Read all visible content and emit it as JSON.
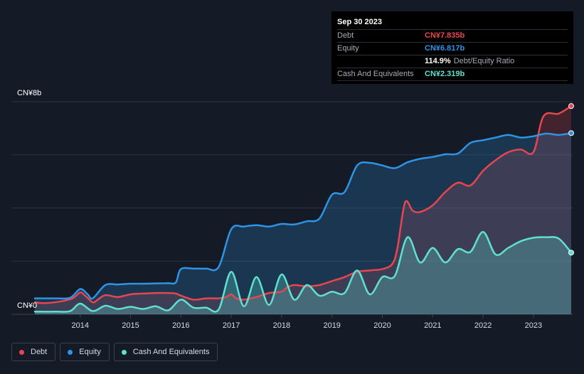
{
  "tooltip": {
    "date": "Sep 30 2023",
    "rows": [
      {
        "label": "Debt",
        "value": "CN¥7.835b",
        "color": "#e8464f"
      },
      {
        "label": "Equity",
        "value": "CN¥6.817b",
        "color": "#2e94e6"
      },
      {
        "label": "",
        "value": "114.9%",
        "suffix": "Debt/Equity Ratio",
        "color": "#ffffff"
      },
      {
        "label": "Cash And Equivalents",
        "value": "CN¥2.319b",
        "color": "#5fe0d0"
      }
    ]
  },
  "legend": [
    {
      "label": "Debt",
      "color": "#e8464f"
    },
    {
      "label": "Equity",
      "color": "#2e94e6"
    },
    {
      "label": "Cash And Equivalents",
      "color": "#5fe0d0"
    }
  ],
  "chart_data": {
    "type": "area",
    "ylim": [
      0,
      8
    ],
    "y_tick_labels": [
      "CN¥0",
      "CN¥8b"
    ],
    "x_tick_labels": [
      "2014",
      "2015",
      "2016",
      "2017",
      "2018",
      "2019",
      "2020",
      "2021",
      "2022",
      "2023"
    ],
    "x_ticks": [
      2014,
      2015,
      2016,
      2017,
      2018,
      2019,
      2020,
      2021,
      2022,
      2023
    ],
    "xlim": [
      2013.1,
      2023.75
    ],
    "grid": true,
    "series": [
      {
        "name": "Debt",
        "color": "#e8464f",
        "points": [
          [
            2013.1,
            0.45
          ],
          [
            2013.3,
            0.42
          ],
          [
            2013.6,
            0.48
          ],
          [
            2013.85,
            0.6
          ],
          [
            2014.0,
            0.82
          ],
          [
            2014.1,
            0.7
          ],
          [
            2014.25,
            0.45
          ],
          [
            2014.35,
            0.55
          ],
          [
            2014.5,
            0.72
          ],
          [
            2014.75,
            0.65
          ],
          [
            2015.0,
            0.75
          ],
          [
            2015.25,
            0.78
          ],
          [
            2015.5,
            0.8
          ],
          [
            2015.75,
            0.8
          ],
          [
            2015.9,
            0.78
          ],
          [
            2016.0,
            0.7
          ],
          [
            2016.25,
            0.55
          ],
          [
            2016.5,
            0.6
          ],
          [
            2016.75,
            0.6
          ],
          [
            2016.9,
            0.65
          ],
          [
            2017.0,
            0.75
          ],
          [
            2017.1,
            0.6
          ],
          [
            2017.25,
            0.55
          ],
          [
            2017.5,
            0.65
          ],
          [
            2017.75,
            0.8
          ],
          [
            2018.0,
            0.85
          ],
          [
            2018.1,
            1.0
          ],
          [
            2018.25,
            1.1
          ],
          [
            2018.5,
            1.05
          ],
          [
            2018.75,
            1.1
          ],
          [
            2019.0,
            1.25
          ],
          [
            2019.25,
            1.4
          ],
          [
            2019.5,
            1.6
          ],
          [
            2019.75,
            1.65
          ],
          [
            2020.0,
            1.7
          ],
          [
            2020.2,
            1.9
          ],
          [
            2020.3,
            2.5
          ],
          [
            2020.45,
            4.2
          ],
          [
            2020.6,
            3.9
          ],
          [
            2020.75,
            3.85
          ],
          [
            2021.0,
            4.1
          ],
          [
            2021.25,
            4.6
          ],
          [
            2021.5,
            4.95
          ],
          [
            2021.75,
            4.85
          ],
          [
            2022.0,
            5.4
          ],
          [
            2022.25,
            5.8
          ],
          [
            2022.5,
            6.1
          ],
          [
            2022.75,
            6.2
          ],
          [
            2023.0,
            6.1
          ],
          [
            2023.2,
            7.45
          ],
          [
            2023.5,
            7.55
          ],
          [
            2023.75,
            7.835
          ]
        ]
      },
      {
        "name": "Equity",
        "color": "#2e94e6",
        "points": [
          [
            2013.1,
            0.6
          ],
          [
            2013.5,
            0.6
          ],
          [
            2013.8,
            0.62
          ],
          [
            2014.0,
            0.95
          ],
          [
            2014.15,
            0.75
          ],
          [
            2014.25,
            0.6
          ],
          [
            2014.5,
            1.1
          ],
          [
            2014.75,
            1.12
          ],
          [
            2015.0,
            1.15
          ],
          [
            2015.25,
            1.15
          ],
          [
            2015.5,
            1.16
          ],
          [
            2015.75,
            1.17
          ],
          [
            2015.9,
            1.2
          ],
          [
            2016.0,
            1.7
          ],
          [
            2016.25,
            1.72
          ],
          [
            2016.5,
            1.72
          ],
          [
            2016.75,
            1.78
          ],
          [
            2017.0,
            3.2
          ],
          [
            2017.25,
            3.3
          ],
          [
            2017.5,
            3.35
          ],
          [
            2017.75,
            3.3
          ],
          [
            2018.0,
            3.4
          ],
          [
            2018.25,
            3.38
          ],
          [
            2018.5,
            3.5
          ],
          [
            2018.75,
            3.6
          ],
          [
            2019.0,
            4.5
          ],
          [
            2019.25,
            4.6
          ],
          [
            2019.5,
            5.6
          ],
          [
            2019.75,
            5.7
          ],
          [
            2020.0,
            5.6
          ],
          [
            2020.25,
            5.5
          ],
          [
            2020.5,
            5.72
          ],
          [
            2020.75,
            5.85
          ],
          [
            2021.0,
            5.92
          ],
          [
            2021.25,
            6.02
          ],
          [
            2021.5,
            6.05
          ],
          [
            2021.75,
            6.45
          ],
          [
            2022.0,
            6.55
          ],
          [
            2022.25,
            6.65
          ],
          [
            2022.5,
            6.75
          ],
          [
            2022.75,
            6.65
          ],
          [
            2023.0,
            6.7
          ],
          [
            2023.25,
            6.8
          ],
          [
            2023.5,
            6.75
          ],
          [
            2023.75,
            6.817
          ]
        ]
      },
      {
        "name": "Cash And Equivalents",
        "color": "#5fe0d0",
        "points": [
          [
            2013.1,
            0.1
          ],
          [
            2013.5,
            0.1
          ],
          [
            2013.8,
            0.12
          ],
          [
            2014.0,
            0.4
          ],
          [
            2014.25,
            0.12
          ],
          [
            2014.5,
            0.32
          ],
          [
            2014.75,
            0.2
          ],
          [
            2015.0,
            0.28
          ],
          [
            2015.25,
            0.2
          ],
          [
            2015.5,
            0.3
          ],
          [
            2015.75,
            0.15
          ],
          [
            2016.0,
            0.55
          ],
          [
            2016.25,
            0.25
          ],
          [
            2016.5,
            0.25
          ],
          [
            2016.75,
            0.18
          ],
          [
            2017.0,
            1.6
          ],
          [
            2017.25,
            0.3
          ],
          [
            2017.5,
            1.4
          ],
          [
            2017.75,
            0.35
          ],
          [
            2018.0,
            1.5
          ],
          [
            2018.25,
            0.55
          ],
          [
            2018.5,
            1.1
          ],
          [
            2018.75,
            0.7
          ],
          [
            2019.0,
            0.85
          ],
          [
            2019.25,
            0.8
          ],
          [
            2019.5,
            1.65
          ],
          [
            2019.75,
            0.75
          ],
          [
            2020.0,
            1.4
          ],
          [
            2020.25,
            1.45
          ],
          [
            2020.5,
            2.9
          ],
          [
            2020.75,
            1.95
          ],
          [
            2021.0,
            2.5
          ],
          [
            2021.25,
            1.95
          ],
          [
            2021.5,
            2.45
          ],
          [
            2021.75,
            2.35
          ],
          [
            2022.0,
            3.1
          ],
          [
            2022.25,
            2.25
          ],
          [
            2022.5,
            2.5
          ],
          [
            2022.75,
            2.75
          ],
          [
            2023.0,
            2.88
          ],
          [
            2023.25,
            2.9
          ],
          [
            2023.5,
            2.85
          ],
          [
            2023.75,
            2.319
          ]
        ]
      }
    ]
  }
}
